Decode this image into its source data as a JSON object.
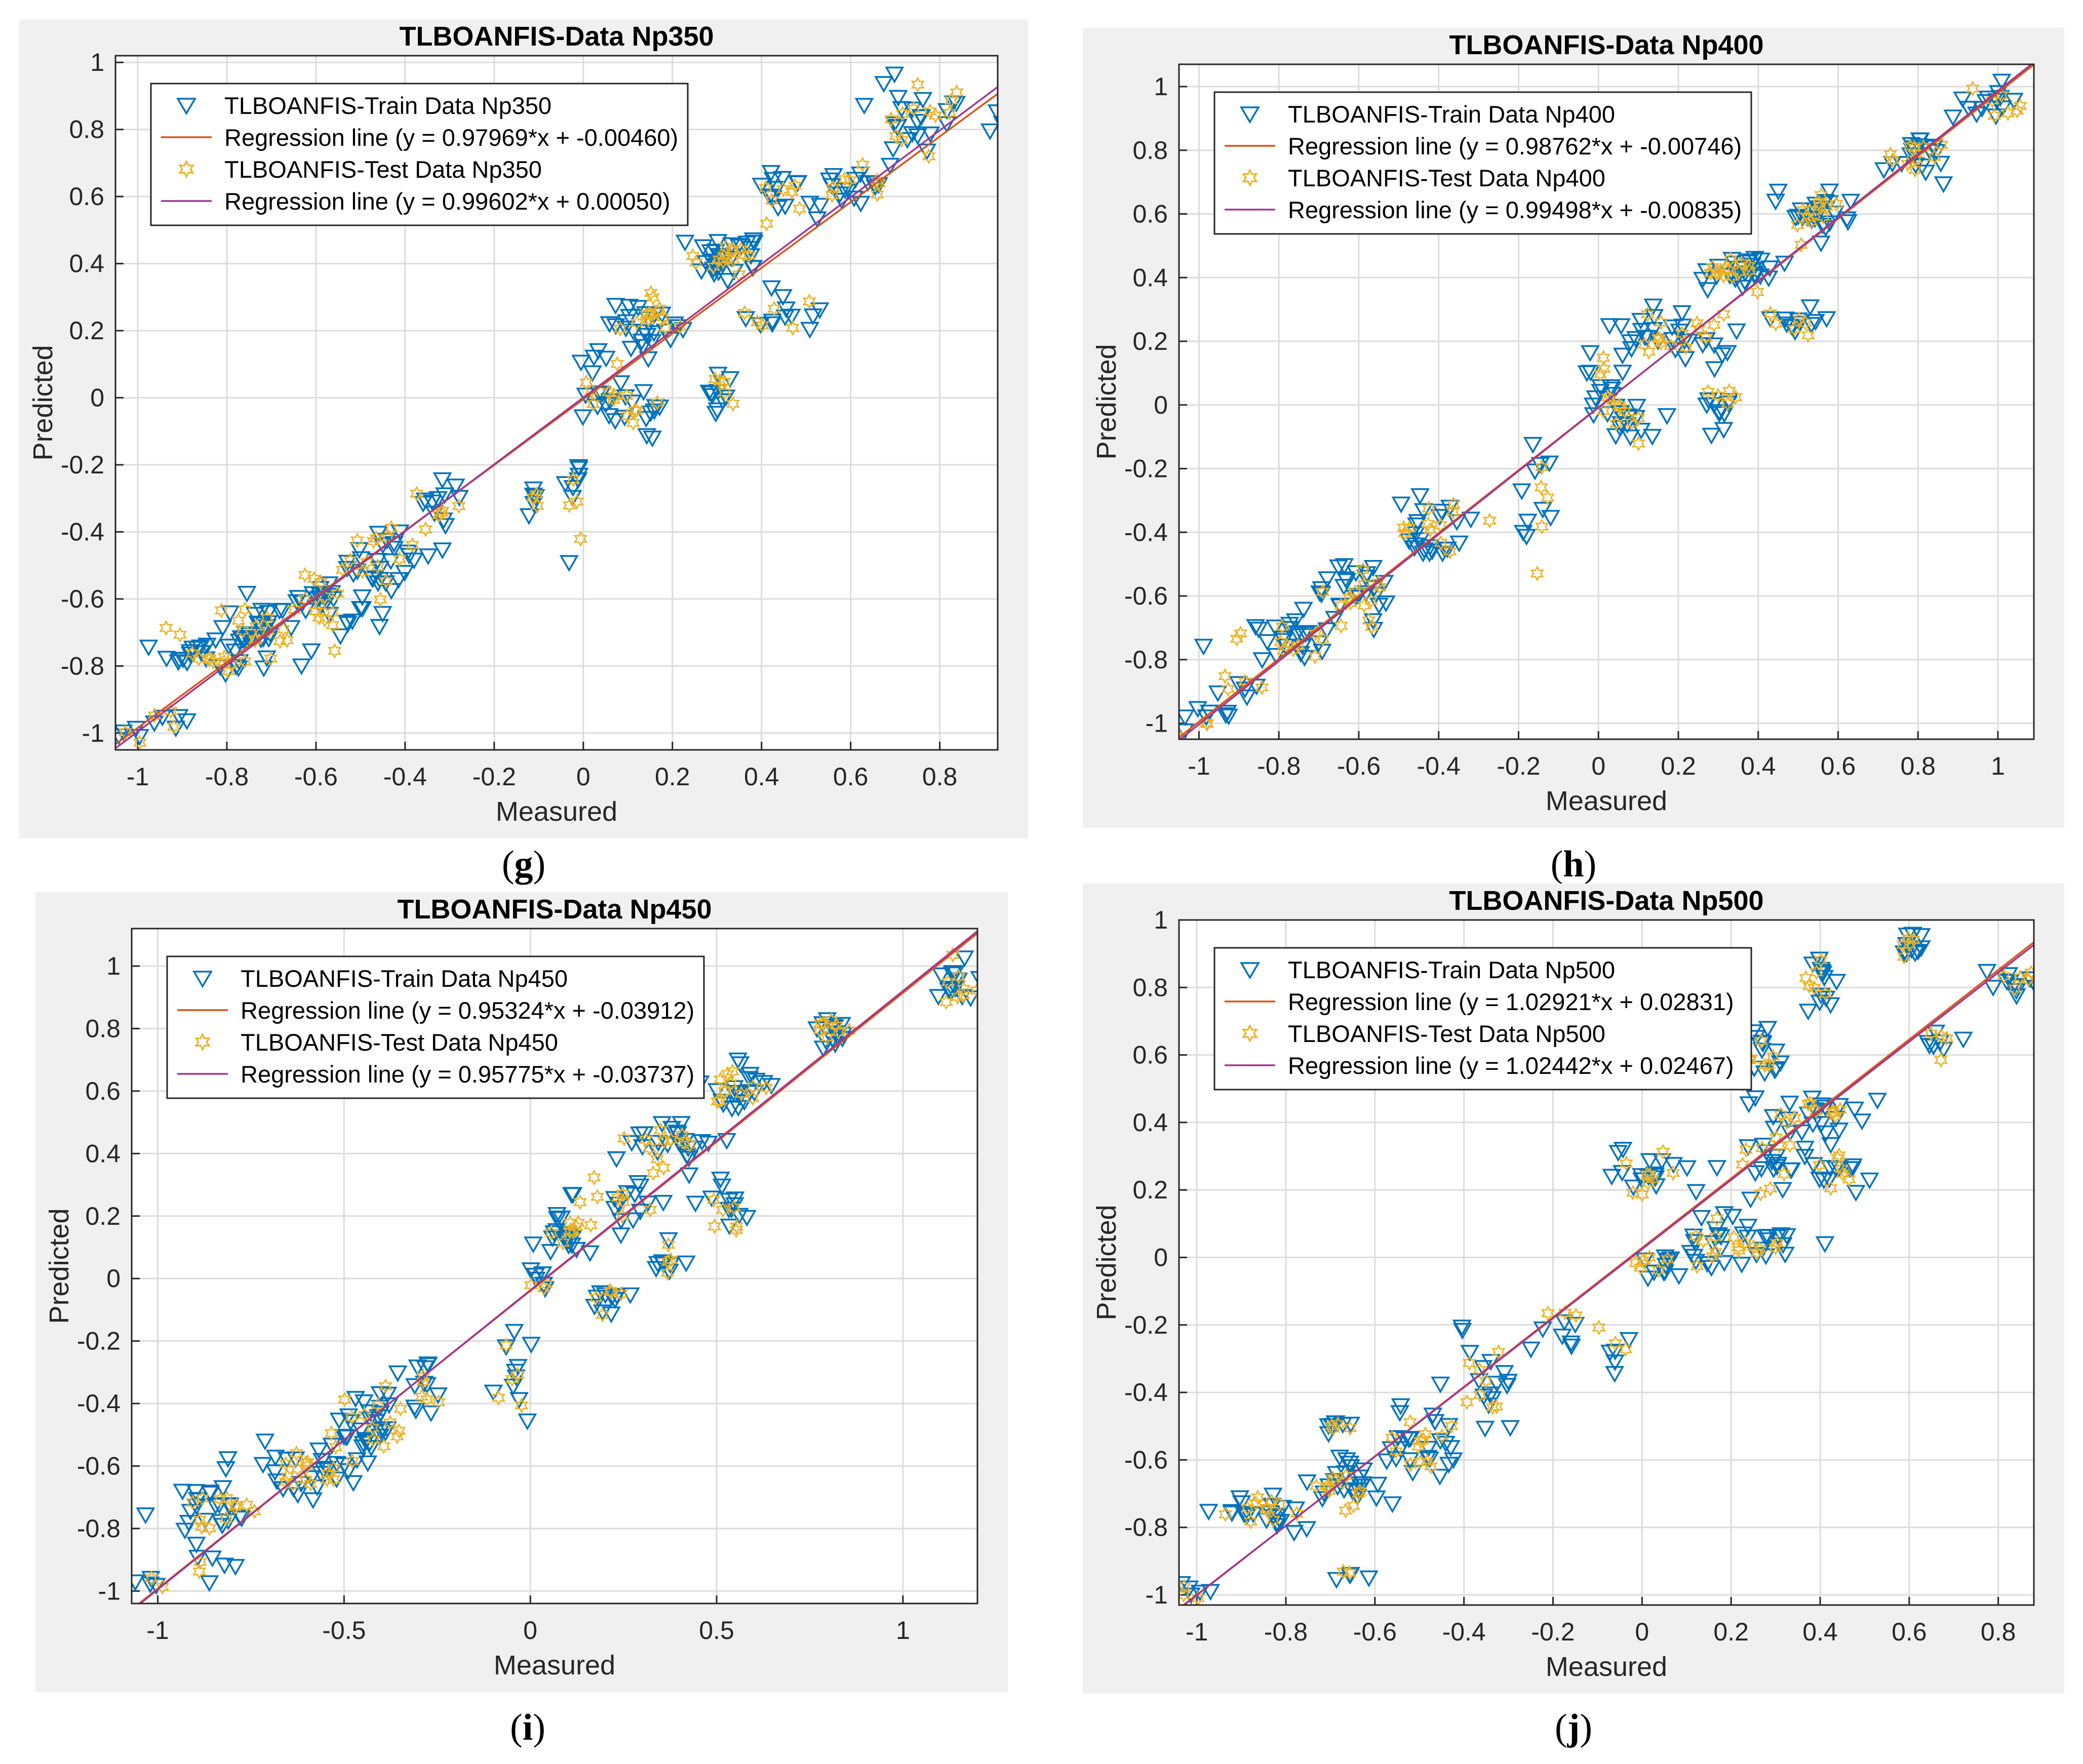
{
  "colors": {
    "train_marker": "#0072BD",
    "test_marker": "#EDB120",
    "train_line": "#D95319",
    "test_line": "#A2378F",
    "grid": "#dcdcdc",
    "panel_bg": "#f0f0f0"
  },
  "chart_data": [
    {
      "id": "g",
      "type": "scatter",
      "caption": "g",
      "title": "TLBOANFIS-Data Np350",
      "xlabel": "Measured",
      "ylabel": "Predicted",
      "xlim": [
        -1.05,
        0.93
      ],
      "ylim": [
        -1.05,
        1.02
      ],
      "xticks": [
        -1,
        -0.8,
        -0.6,
        -0.4,
        -0.2,
        0,
        0.2,
        0.4,
        0.6,
        0.8
      ],
      "xticklabels": [
        "-1",
        "-0.8",
        "-0.6",
        "-0.4",
        "-0.2",
        "0",
        "0.2",
        "0.4",
        "0.6",
        "0.8"
      ],
      "yticks": [
        -1,
        -0.8,
        -0.6,
        -0.4,
        -0.2,
        0,
        0.2,
        0.4,
        0.6,
        0.8,
        1
      ],
      "yticklabels": [
        "-1",
        "-0.8",
        "-0.6",
        "-0.4",
        "-0.2",
        "0",
        "0.2",
        "0.4",
        "0.6",
        "0.8",
        "1"
      ],
      "legend": [
        "TLBOANFIS-Train Data Np350",
        "Regression line (y = 0.97969*x + -0.00460)",
        "TLBOANFIS-Test Data Np350",
        "Regression line (y = 0.99602*x + 0.00050)"
      ],
      "regression": [
        {
          "slope": 0.97969,
          "intercept": -0.0046
        },
        {
          "slope": 0.99602,
          "intercept": 0.0005
        }
      ],
      "clusters": [
        {
          "x": -1.0,
          "y": -1.0,
          "sx": 0.02,
          "sy": 0.02,
          "n": 4
        },
        {
          "x": -0.93,
          "y": -0.96,
          "sx": 0.03,
          "sy": 0.02,
          "n": 5
        },
        {
          "x": -0.85,
          "y": -0.76,
          "sx": 0.05,
          "sy": 0.03,
          "n": 24
        },
        {
          "x": -0.72,
          "y": -0.69,
          "sx": 0.06,
          "sy": 0.04,
          "n": 26
        },
        {
          "x": -0.58,
          "y": -0.6,
          "sx": 0.05,
          "sy": 0.05,
          "n": 30
        },
        {
          "x": -0.45,
          "y": -0.48,
          "sx": 0.05,
          "sy": 0.05,
          "n": 26
        },
        {
          "x": -0.33,
          "y": -0.33,
          "sx": 0.03,
          "sy": 0.04,
          "n": 12
        },
        {
          "x": -0.11,
          "y": -0.3,
          "sx": 0.01,
          "sy": 0.04,
          "n": 5
        },
        {
          "x": -0.02,
          "y": -0.3,
          "sx": 0.01,
          "sy": 0.1,
          "n": 8
        },
        {
          "x": 0.03,
          "y": 0.03,
          "sx": 0.03,
          "sy": 0.05,
          "n": 14
        },
        {
          "x": 0.14,
          "y": 0.22,
          "sx": 0.04,
          "sy": 0.04,
          "n": 26
        },
        {
          "x": 0.14,
          "y": -0.05,
          "sx": 0.04,
          "sy": 0.03,
          "n": 12
        },
        {
          "x": 0.31,
          "y": 0.0,
          "sx": 0.02,
          "sy": 0.04,
          "n": 10
        },
        {
          "x": 0.32,
          "y": 0.42,
          "sx": 0.05,
          "sy": 0.03,
          "n": 30
        },
        {
          "x": 0.45,
          "y": 0.24,
          "sx": 0.05,
          "sy": 0.03,
          "n": 12
        },
        {
          "x": 0.45,
          "y": 0.6,
          "sx": 0.04,
          "sy": 0.04,
          "n": 14
        },
        {
          "x": 0.62,
          "y": 0.63,
          "sx": 0.04,
          "sy": 0.03,
          "n": 16
        },
        {
          "x": 0.78,
          "y": 0.85,
          "sx": 0.07,
          "sy": 0.07,
          "n": 26
        }
      ]
    },
    {
      "id": "h",
      "type": "scatter",
      "caption": "h",
      "title": "TLBOANFIS-Data Np400",
      "xlabel": "Measured",
      "ylabel": "Predicted",
      "xlim": [
        -1.05,
        1.09
      ],
      "ylim": [
        -1.05,
        1.07
      ],
      "xticks": [
        -1,
        -0.8,
        -0.6,
        -0.4,
        -0.2,
        0,
        0.2,
        0.4,
        0.6,
        0.8,
        1
      ],
      "xticklabels": [
        "-1",
        "-0.8",
        "-0.6",
        "-0.4",
        "-0.2",
        "0",
        "0.2",
        "0.4",
        "0.6",
        "0.8",
        "1"
      ],
      "yticks": [
        -1,
        -0.8,
        -0.6,
        -0.4,
        -0.2,
        0,
        0.2,
        0.4,
        0.6,
        0.8,
        1
      ],
      "yticklabels": [
        "-1",
        "-0.8",
        "-0.6",
        "-0.4",
        "-0.2",
        "0",
        "0.2",
        "0.4",
        "0.6",
        "0.8",
        "1"
      ],
      "legend": [
        "TLBOANFIS-Train Data Np400",
        "Regression line (y = 0.98762*x + -0.00746)",
        "TLBOANFIS-Test Data Np400",
        "Regression line (y = 0.99498*x + -0.00835)"
      ],
      "regression": [
        {
          "slope": 0.98762,
          "intercept": -0.00746
        },
        {
          "slope": 0.99498,
          "intercept": -0.00835
        }
      ],
      "clusters": [
        {
          "x": -1.0,
          "y": -0.99,
          "sx": 0.03,
          "sy": 0.02,
          "n": 6
        },
        {
          "x": -0.9,
          "y": -0.9,
          "sx": 0.04,
          "sy": 0.05,
          "n": 8
        },
        {
          "x": -0.78,
          "y": -0.74,
          "sx": 0.06,
          "sy": 0.04,
          "n": 22
        },
        {
          "x": -0.6,
          "y": -0.6,
          "sx": 0.05,
          "sy": 0.05,
          "n": 28
        },
        {
          "x": -0.42,
          "y": -0.4,
          "sx": 0.05,
          "sy": 0.05,
          "n": 24
        },
        {
          "x": -0.15,
          "y": -0.3,
          "sx": 0.02,
          "sy": 0.1,
          "n": 10
        },
        {
          "x": 0.02,
          "y": 0.05,
          "sx": 0.03,
          "sy": 0.05,
          "n": 14
        },
        {
          "x": 0.08,
          "y": -0.05,
          "sx": 0.04,
          "sy": 0.03,
          "n": 12
        },
        {
          "x": 0.12,
          "y": 0.22,
          "sx": 0.04,
          "sy": 0.04,
          "n": 16
        },
        {
          "x": 0.25,
          "y": 0.2,
          "sx": 0.04,
          "sy": 0.05,
          "n": 14
        },
        {
          "x": 0.3,
          "y": 0.0,
          "sx": 0.02,
          "sy": 0.04,
          "n": 10
        },
        {
          "x": 0.35,
          "y": 0.42,
          "sx": 0.05,
          "sy": 0.03,
          "n": 28
        },
        {
          "x": 0.5,
          "y": 0.25,
          "sx": 0.04,
          "sy": 0.03,
          "n": 12
        },
        {
          "x": 0.55,
          "y": 0.6,
          "sx": 0.05,
          "sy": 0.04,
          "n": 24
        },
        {
          "x": 0.8,
          "y": 0.8,
          "sx": 0.04,
          "sy": 0.04,
          "n": 20
        },
        {
          "x": 0.98,
          "y": 0.95,
          "sx": 0.05,
          "sy": 0.04,
          "n": 14
        }
      ]
    },
    {
      "id": "i",
      "type": "scatter",
      "caption": "i",
      "title": "TLBOANFIS-Data Np450",
      "xlabel": "Measured",
      "ylabel": "Predicted",
      "xlim": [
        -1.07,
        1.2
      ],
      "ylim": [
        -1.04,
        1.12
      ],
      "xticks": [
        -1,
        -0.5,
        0,
        0.5,
        1
      ],
      "xticklabels": [
        "-1",
        "-0.5",
        "0",
        "0.5",
        "1"
      ],
      "yticks": [
        -1,
        -0.8,
        -0.6,
        -0.4,
        -0.2,
        0,
        0.2,
        0.4,
        0.6,
        0.8,
        1
      ],
      "yticklabels": [
        "-1",
        "-0.8",
        "-0.6",
        "-0.4",
        "-0.2",
        "0",
        "0.2",
        "0.4",
        "0.6",
        "0.8",
        "1"
      ],
      "legend": [
        "TLBOANFIS-Train Data Np450",
        "Regression line (y = 0.95324*x + -0.03912)",
        "TLBOANFIS-Test Data Np450",
        "Regression line (y = 0.95775*x + -0.03737)"
      ],
      "regression": [
        {
          "slope": 0.95324,
          "intercept": -0.03912
        },
        {
          "slope": 0.95775,
          "intercept": -0.03737
        }
      ],
      "clusters": [
        {
          "x": -1.02,
          "y": -0.99,
          "sx": 0.02,
          "sy": 0.02,
          "n": 4
        },
        {
          "x": -0.88,
          "y": -0.92,
          "sx": 0.04,
          "sy": 0.05,
          "n": 6
        },
        {
          "x": -0.82,
          "y": -0.74,
          "sx": 0.06,
          "sy": 0.04,
          "n": 22
        },
        {
          "x": -0.6,
          "y": -0.62,
          "sx": 0.08,
          "sy": 0.05,
          "n": 30
        },
        {
          "x": -0.45,
          "y": -0.48,
          "sx": 0.06,
          "sy": 0.06,
          "n": 26
        },
        {
          "x": -0.3,
          "y": -0.36,
          "sx": 0.04,
          "sy": 0.06,
          "n": 14
        },
        {
          "x": -0.05,
          "y": -0.3,
          "sx": 0.03,
          "sy": 0.1,
          "n": 10
        },
        {
          "x": 0.02,
          "y": -0.02,
          "sx": 0.02,
          "sy": 0.02,
          "n": 6
        },
        {
          "x": 0.1,
          "y": 0.15,
          "sx": 0.04,
          "sy": 0.06,
          "n": 18
        },
        {
          "x": 0.2,
          "y": -0.06,
          "sx": 0.03,
          "sy": 0.03,
          "n": 10
        },
        {
          "x": 0.25,
          "y": 0.24,
          "sx": 0.04,
          "sy": 0.04,
          "n": 14
        },
        {
          "x": 0.37,
          "y": 0.42,
          "sx": 0.06,
          "sy": 0.04,
          "n": 24
        },
        {
          "x": 0.36,
          "y": 0.05,
          "sx": 0.02,
          "sy": 0.04,
          "n": 8
        },
        {
          "x": 0.52,
          "y": 0.24,
          "sx": 0.03,
          "sy": 0.04,
          "n": 12
        },
        {
          "x": 0.55,
          "y": 0.6,
          "sx": 0.06,
          "sy": 0.05,
          "n": 22
        },
        {
          "x": 0.82,
          "y": 0.8,
          "sx": 0.03,
          "sy": 0.04,
          "n": 16
        },
        {
          "x": 1.16,
          "y": 0.94,
          "sx": 0.03,
          "sy": 0.04,
          "n": 16
        }
      ]
    },
    {
      "id": "j",
      "type": "scatter",
      "caption": "j",
      "title": "TLBOANFIS-Data Np500",
      "xlabel": "Measured",
      "ylabel": "Predicted",
      "xlim": [
        -1.04,
        0.88
      ],
      "ylim": [
        -1.03,
        1.0
      ],
      "xticks": [
        -1,
        -0.8,
        -0.6,
        -0.4,
        -0.2,
        0,
        0.2,
        0.4,
        0.6,
        0.8
      ],
      "xticklabels": [
        "-1",
        "-0.8",
        "-0.6",
        "-0.4",
        "-0.2",
        "0",
        "0.2",
        "0.4",
        "0.6",
        "0.8"
      ],
      "yticks": [
        -1,
        -0.8,
        -0.6,
        -0.4,
        -0.2,
        0,
        0.2,
        0.4,
        0.6,
        0.8,
        1
      ],
      "yticklabels": [
        "-1",
        "-0.8",
        "-0.6",
        "-0.4",
        "-0.2",
        "0",
        "0.2",
        "0.4",
        "0.6",
        "0.8",
        "1"
      ],
      "legend": [
        "TLBOANFIS-Train Data Np500",
        "Regression line (y = 1.02921*x + 0.02831)",
        "TLBOANFIS-Test Data Np500",
        "Regression line (y = 1.02442*x + 0.02467)"
      ],
      "regression": [
        {
          "slope": 1.02921,
          "intercept": 0.02831
        },
        {
          "slope": 1.02442,
          "intercept": 0.02467
        }
      ],
      "clusters": [
        {
          "x": -1.0,
          "y": -0.99,
          "sx": 0.02,
          "sy": 0.02,
          "n": 5
        },
        {
          "x": -0.86,
          "y": -0.76,
          "sx": 0.05,
          "sy": 0.03,
          "n": 22
        },
        {
          "x": -0.68,
          "y": -0.5,
          "sx": 0.02,
          "sy": 0.01,
          "n": 8
        },
        {
          "x": -0.66,
          "y": -0.68,
          "sx": 0.05,
          "sy": 0.04,
          "n": 24
        },
        {
          "x": -0.66,
          "y": -0.94,
          "sx": 0.02,
          "sy": 0.01,
          "n": 4
        },
        {
          "x": -0.5,
          "y": -0.55,
          "sx": 0.06,
          "sy": 0.05,
          "n": 26
        },
        {
          "x": -0.34,
          "y": -0.36,
          "sx": 0.04,
          "sy": 0.06,
          "n": 16
        },
        {
          "x": -0.16,
          "y": -0.2,
          "sx": 0.03,
          "sy": 0.04,
          "n": 6
        },
        {
          "x": -0.05,
          "y": -0.28,
          "sx": 0.02,
          "sy": 0.04,
          "n": 5
        },
        {
          "x": 0.02,
          "y": 0.24,
          "sx": 0.05,
          "sy": 0.04,
          "n": 18
        },
        {
          "x": 0.05,
          "y": -0.02,
          "sx": 0.04,
          "sy": 0.03,
          "n": 14
        },
        {
          "x": 0.15,
          "y": 0.05,
          "sx": 0.05,
          "sy": 0.05,
          "n": 14
        },
        {
          "x": 0.28,
          "y": 0.05,
          "sx": 0.05,
          "sy": 0.03,
          "n": 16
        },
        {
          "x": 0.25,
          "y": 0.6,
          "sx": 0.04,
          "sy": 0.05,
          "n": 16
        },
        {
          "x": 0.3,
          "y": 0.3,
          "sx": 0.06,
          "sy": 0.07,
          "n": 22
        },
        {
          "x": 0.4,
          "y": 0.42,
          "sx": 0.05,
          "sy": 0.03,
          "n": 18
        },
        {
          "x": 0.4,
          "y": 0.8,
          "sx": 0.02,
          "sy": 0.04,
          "n": 12
        },
        {
          "x": 0.45,
          "y": 0.25,
          "sx": 0.04,
          "sy": 0.03,
          "n": 12
        },
        {
          "x": 0.6,
          "y": 0.95,
          "sx": 0.02,
          "sy": 0.03,
          "n": 10
        },
        {
          "x": 0.68,
          "y": 0.64,
          "sx": 0.02,
          "sy": 0.02,
          "n": 8
        },
        {
          "x": 0.84,
          "y": 0.82,
          "sx": 0.03,
          "sy": 0.03,
          "n": 12
        }
      ]
    }
  ]
}
